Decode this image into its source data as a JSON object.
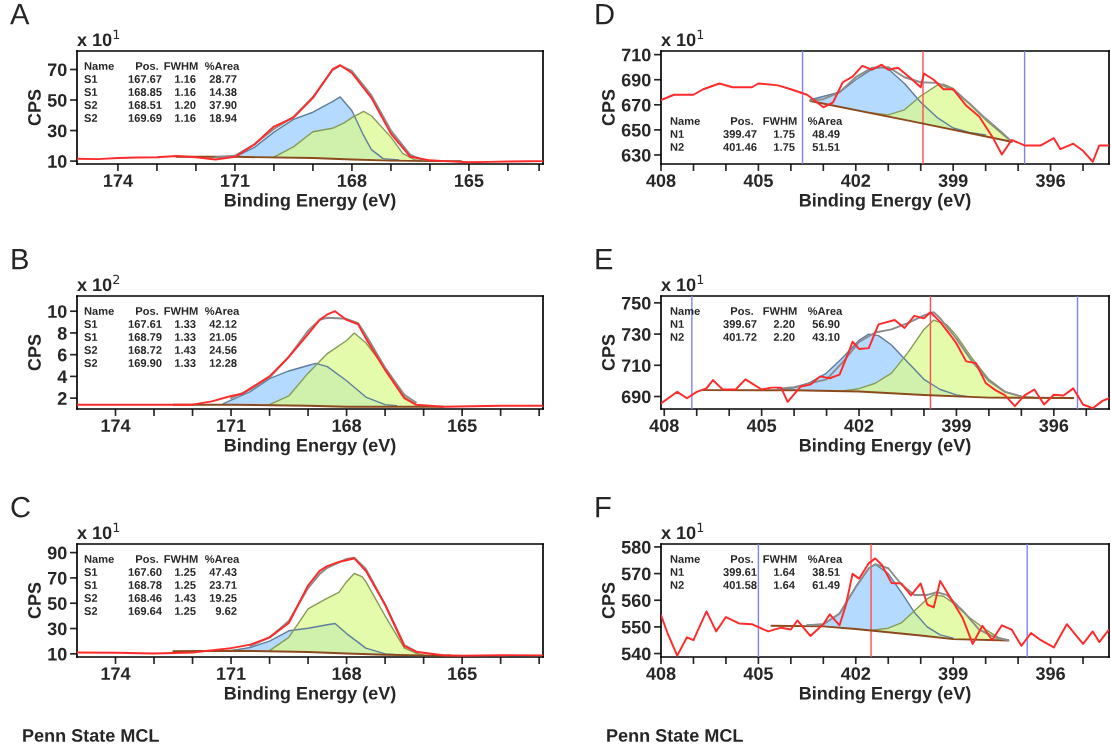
{
  "chart_data": [
    {
      "type": "line",
      "title": "A",
      "xlabel": "Binding Energy (eV)",
      "ylabel": "CPS",
      "xlim": [
        175.05,
        163.1
      ],
      "ylim": [
        8.1,
        82.1
      ],
      "xticks": [
        174,
        {
          "value": 173,
          "label": null
        },
        {
          "value": 172,
          "label": null
        },
        171,
        {
          "value": 170,
          "label": null
        },
        {
          "value": 169,
          "label": null
        },
        168,
        {
          "value": 167,
          "label": null
        },
        {
          "value": 166,
          "label": null
        },
        165,
        {
          "value": 164,
          "label": null
        },
        {
          "value": 163.2,
          "label": null
        }
      ],
      "yticks": [
        10,
        30,
        50,
        70
      ],
      "annotations": [
        "x 10$^{1}$",
        "Name",
        "Pos.",
        "FWHM",
        "%Area",
        "S1",
        "167.67",
        "1.16",
        "28.77",
        "S1",
        "168.85",
        "1.16",
        "14.38",
        "S2",
        "168.51",
        "1.20",
        "37.90",
        "S2",
        "169.69",
        "1.16",
        "18.94"
      ],
      "series": [
        {
          "type": "area",
          "color": "#99ccff",
          "x": [
            171,
            170.5,
            170,
            169.5,
            169,
            168.5,
            168.3,
            168,
            167.7,
            167.5,
            167.2,
            166.8
          ],
          "values": [
            12.8,
            19,
            29,
            37.3,
            42,
            49,
            52,
            43,
            26.8,
            17.5,
            11.6,
            10.8
          ]
        },
        {
          "type": "area",
          "color": "#d9fa8c",
          "x": [
            170,
            169.5,
            169,
            168.5,
            168.2,
            168,
            167.7,
            167.5,
            167,
            166.7,
            166.4,
            166.2
          ],
          "values": [
            12.6,
            19.3,
            29.2,
            31.5,
            35,
            38.5,
            42.5,
            39.7,
            25.7,
            15,
            11,
            10.2
          ]
        },
        {
          "type": "line",
          "color": "#8b4a1c",
          "x": [
            172.5,
            171,
            169,
            168,
            167,
            166,
            165.2
          ],
          "values": [
            12.8,
            12.8,
            12,
            11,
            10.3,
            10,
            10
          ]
        },
        {
          "type": "line",
          "color": "#8c8c8c",
          "x": [
            171.5,
            171,
            170.5,
            170,
            169.5,
            169,
            168.5,
            168.3,
            168,
            167.5,
            167,
            166.5,
            166.2
          ],
          "values": [
            12.5,
            13.5,
            21,
            31,
            39,
            52,
            69.5,
            72.5,
            69,
            53,
            30,
            14,
            11
          ]
        },
        {
          "type": "line",
          "color": "#ff2a2a",
          "x": [
            175.05,
            174.5,
            174,
            173.5,
            173,
            172.5,
            172,
            171.5,
            171,
            170.5,
            170,
            169.5,
            169,
            168.5,
            168.3,
            168,
            167.5,
            167,
            166.5,
            166,
            165.5,
            165,
            164.5,
            164,
            163.5,
            163.1
          ],
          "values": [
            11.5,
            11.3,
            12,
            12.3,
            12.5,
            13.3,
            12.5,
            11,
            12.8,
            20.9,
            32.6,
            38.5,
            51.4,
            70,
            72.8,
            67.7,
            51.4,
            28,
            12.8,
            10.5,
            9.8,
            9.3,
            9.5,
            9.8,
            9.9,
            10
          ]
        }
      ]
    },
    {
      "type": "line",
      "title": "D",
      "xlabel": "Binding Energy (eV)",
      "ylabel": "CPS",
      "xlim": [
        408,
        394.2
      ],
      "ylim": [
        622.8,
        712.9
      ],
      "xticks": [
        408,
        {
          "value": 407,
          "label": null
        },
        {
          "value": 406,
          "label": null
        },
        405,
        {
          "value": 404,
          "label": null
        },
        {
          "value": 403,
          "label": null
        },
        402,
        {
          "value": 401,
          "label": null
        },
        {
          "value": 400,
          "label": null
        },
        399,
        {
          "value": 398,
          "label": null
        },
        {
          "value": 397,
          "label": null
        },
        396,
        {
          "value": 395,
          "label": null
        }
      ],
      "yticks": [
        630,
        650,
        670,
        690,
        710
      ],
      "ref_lines": [
        {
          "axis": "x",
          "value": 403.64,
          "color": "#8080ff"
        },
        {
          "axis": "x",
          "value": 399.93,
          "color": "#ff4d4d"
        },
        {
          "axis": "x",
          "value": 396.8,
          "color": "#8080ff"
        }
      ],
      "annotations": [
        "x 10$^{1}$",
        "Name",
        "Pos.",
        "FWHM",
        "%Area",
        "N1",
        "399.47",
        "1.75",
        "48.49",
        "N2",
        "401.46",
        "1.75",
        "51.51"
      ],
      "series": [
        {
          "type": "area",
          "color": "#99ccff",
          "x": [
            403.4,
            402.5,
            402,
            401.5,
            401.2,
            401,
            400.5,
            400,
            399.5,
            399,
            398.5,
            398
          ],
          "values": [
            674,
            680,
            690,
            698.5,
            700,
            698.5,
            687,
            672,
            660,
            651.5,
            648,
            646
          ]
        },
        {
          "type": "area",
          "color": "#d9fa8c",
          "x": [
            401.5,
            401,
            400.5,
            400,
            399.5,
            399.3,
            399,
            398.5,
            398,
            397.5,
            397.2
          ],
          "values": [
            663.5,
            662,
            666,
            677,
            685.5,
            686.5,
            683,
            671,
            658,
            647,
            640.5
          ]
        },
        {
          "type": "line",
          "color": "#8b4a1c",
          "x": [
            403.4,
            400.3,
            397.2
          ],
          "values": [
            673,
            657,
            640.5
          ]
        },
        {
          "type": "line",
          "color": "#8c8c8c",
          "x": [
            403.4,
            403,
            402.5,
            402,
            401.5,
            401,
            400.5,
            400,
            399.5,
            399,
            398.5,
            398,
            397.5,
            397.2
          ],
          "values": [
            673.5,
            674.5,
            680,
            692,
            699.5,
            700,
            692,
            688,
            687.5,
            682,
            671,
            659,
            648,
            640.5
          ]
        },
        {
          "type": "line",
          "color": "#ff2a2a",
          "x": [
            408,
            407.6,
            407,
            406.7,
            406.2,
            405.8,
            405.2,
            405,
            404.4,
            404,
            403.5,
            403,
            402.7,
            402.4,
            402.1,
            401.8,
            401.5,
            401.2,
            401,
            400.7,
            400.3,
            400,
            399.9,
            399.6,
            399.3,
            399,
            398.6,
            398.2,
            397.8,
            397.5,
            397.2,
            396.8,
            396.3,
            395.9,
            395.7,
            395.3,
            395,
            394.7,
            394.5,
            394.2
          ],
          "values": [
            673.7,
            678,
            678,
            682.4,
            687,
            684,
            684,
            687,
            685.5,
            682.4,
            678,
            668,
            672,
            688,
            692.5,
            701,
            698,
            702,
            698,
            699.5,
            691,
            684,
            695,
            690,
            682.4,
            682.4,
            669.4,
            660.7,
            644.8,
            630.4,
            642,
            637.6,
            637.6,
            643.4,
            634.7,
            639,
            633.3,
            624.6,
            637.6,
            637.6
          ]
        }
      ]
    },
    {
      "type": "line",
      "title": "B",
      "xlabel": "Binding Energy (eV)",
      "ylabel": "CPS",
      "xlim": [
        175.0,
        162.9
      ],
      "ylim": [
        1.0,
        11.4
      ],
      "xticks": [
        174,
        {
          "value": 173,
          "label": null
        },
        {
          "value": 172,
          "label": null
        },
        171,
        {
          "value": 170,
          "label": null
        },
        {
          "value": 169,
          "label": null
        },
        168,
        {
          "value": 167,
          "label": null
        },
        {
          "value": 166,
          "label": null
        },
        165,
        {
          "value": 164,
          "label": null
        },
        {
          "value": 163,
          "label": null
        }
      ],
      "yticks": [
        2,
        4,
        6,
        8,
        10
      ],
      "annotations": [
        "x 10$^{2}$",
        "Name",
        "Pos.",
        "FWHM",
        "%Area",
        "S1",
        "167.61",
        "1.33",
        "42.12",
        "S1",
        "168.79",
        "1.33",
        "21.05",
        "S2",
        "168.72",
        "1.43",
        "24.56",
        "S2",
        "169.90",
        "1.33",
        "12.28"
      ],
      "series": [
        {
          "type": "area",
          "color": "#99ccff",
          "x": [
            171.2,
            170.5,
            170,
            169.5,
            169,
            168.8,
            168.5,
            168,
            167.5,
            167,
            166.7
          ],
          "values": [
            1.5,
            2.6,
            3.8,
            4.5,
            5.0,
            5.2,
            4.9,
            3.6,
            2.1,
            1.4,
            1.3
          ]
        },
        {
          "type": "area",
          "color": "#d9fa8c",
          "x": [
            170,
            169.5,
            169,
            168.5,
            168,
            167.8,
            167.5,
            167,
            166.5,
            166.2,
            166
          ],
          "values": [
            1.4,
            2.2,
            4.3,
            6.1,
            7.3,
            8.0,
            7.1,
            4.8,
            2.1,
            1.4,
            1.2
          ]
        },
        {
          "type": "line",
          "color": "#8b4a1c",
          "x": [
            172.5,
            171,
            169,
            168,
            167,
            165.5
          ],
          "values": [
            1.4,
            1.4,
            1.3,
            1.2,
            1.2,
            1.2
          ]
        },
        {
          "type": "line",
          "color": "#8c8c8c",
          "x": [
            171,
            170.5,
            170,
            169.5,
            169,
            168.7,
            168.5,
            168,
            167.7,
            167.5,
            167,
            166.5,
            166.2
          ],
          "values": [
            2.0,
            2.8,
            3.9,
            5.8,
            8.2,
            9.2,
            9.4,
            9.3,
            8.9,
            7.8,
            4.8,
            2.3,
            1.6
          ]
        },
        {
          "type": "line",
          "color": "#ff2a2a",
          "x": [
            175.0,
            174,
            173,
            172,
            171.5,
            171,
            170.7,
            170.5,
            170,
            169.5,
            169,
            168.7,
            168.5,
            168.3,
            168,
            167.7,
            167.5,
            167,
            166.5,
            166.2,
            165.5,
            164,
            162.9
          ],
          "values": [
            1.4,
            1.4,
            1.4,
            1.4,
            1.7,
            2.2,
            2.4,
            2.9,
            4.0,
            5.8,
            7.9,
            9.2,
            9.7,
            10.0,
            9.2,
            8.8,
            7.5,
            4.6,
            2.0,
            1.4,
            1.2,
            1.3,
            1.3
          ]
        }
      ]
    },
    {
      "type": "line",
      "title": "E",
      "xlabel": "Binding Energy (eV)",
      "ylabel": "CPS",
      "xlim": [
        408.1,
        394.3
      ],
      "ylim": [
        682.0,
        754.4
      ],
      "xticks": [
        408,
        {
          "value": 407,
          "label": null
        },
        {
          "value": 406,
          "label": null
        },
        405,
        {
          "value": 404,
          "label": null
        },
        {
          "value": 403,
          "label": null
        },
        402,
        {
          "value": 401,
          "label": null
        },
        {
          "value": 400,
          "label": null
        },
        399,
        {
          "value": 398,
          "label": null
        },
        {
          "value": 397,
          "label": null
        },
        396,
        {
          "value": 395,
          "label": null
        }
      ],
      "yticks": [
        690,
        710,
        730,
        750
      ],
      "ref_lines": [
        {
          "axis": "x",
          "value": 407.15,
          "color": "#8080ff"
        },
        {
          "axis": "x",
          "value": 399.8,
          "color": "#ff4d4d"
        },
        {
          "axis": "x",
          "value": 395.27,
          "color": "#8080ff"
        }
      ],
      "annotations": [
        "x 10$^{1}$",
        "Name",
        "Pos.",
        "FWHM",
        "%Area",
        "N1",
        "399.67",
        "2.20",
        "56.90",
        "N2",
        "401.72",
        "2.20",
        "43.10"
      ],
      "series": [
        {
          "type": "area",
          "color": "#99ccff",
          "x": [
            404.5,
            404,
            403.5,
            403,
            402.5,
            402,
            401.7,
            401.4,
            401,
            400.5,
            400,
            399.5,
            399,
            398.7
          ],
          "values": [
            694.5,
            695.5,
            699,
            705,
            715,
            726,
            730,
            729,
            723,
            712,
            701,
            694.5,
            691,
            690
          ]
        },
        {
          "type": "area",
          "color": "#d9fa8c",
          "x": [
            402.5,
            402,
            401.5,
            401,
            400.5,
            400,
            399.7,
            399.3,
            399,
            398.5,
            398,
            397.5,
            397,
            396.5
          ],
          "values": [
            693.6,
            695,
            698.5,
            705,
            718,
            733,
            739,
            736,
            729,
            714,
            701,
            693,
            690,
            689.2
          ]
        },
        {
          "type": "line",
          "color": "#8b4a1c",
          "x": [
            406.8,
            404,
            402,
            400,
            398,
            395.4
          ],
          "values": [
            694.1,
            694,
            693.2,
            691,
            689.3,
            689
          ]
        },
        {
          "type": "line",
          "color": "#8c8c8c",
          "x": [
            404.5,
            404,
            403,
            402.5,
            402,
            401.5,
            401,
            400.5,
            400,
            399.7,
            399.5,
            399,
            398.5,
            398,
            397.5,
            397
          ],
          "values": [
            695,
            696,
            701,
            712,
            725,
            731,
            733,
            737,
            742,
            744,
            740,
            727,
            712,
            700,
            693,
            690
          ]
        },
        {
          "type": "line",
          "color": "#ff2a2a",
          "x": [
            408.1,
            407.6,
            407.3,
            407,
            406.7,
            406.5,
            406.2,
            405.8,
            405.5,
            405,
            404.7,
            404.4,
            404.2,
            403.8,
            403.5,
            403.2,
            402.9,
            402.6,
            402.3,
            402.2,
            402,
            401.7,
            401.4,
            400.9,
            400.6,
            400.3,
            400,
            399.8,
            399.5,
            399.2,
            399,
            398.7,
            398.4,
            398.1,
            397.8,
            397.5,
            397.2,
            396.9,
            396.6,
            396.3,
            396,
            395.7,
            395.4,
            395.1,
            394.8,
            394.5,
            394.3
          ],
          "values": [
            685.6,
            693,
            688.9,
            693,
            695.2,
            700.5,
            694.5,
            694.5,
            701,
            694.5,
            695.7,
            695.7,
            686.6,
            696.4,
            697.6,
            702.9,
            701.7,
            704,
            719.4,
            725.1,
            720.5,
            721,
            736.2,
            739,
            733.9,
            741.7,
            740.1,
            744,
            737.8,
            729.7,
            724,
            712.5,
            711.4,
            698.7,
            694.1,
            690.7,
            683.8,
            690.7,
            694.5,
            684.9,
            691.1,
            690.7,
            695.2,
            684.9,
            682.5,
            687.2,
            688.9
          ]
        }
      ]
    },
    {
      "type": "line",
      "title": "C",
      "xlabel": "Binding Energy (eV)",
      "ylabel": "CPS",
      "xlim": [
        175.0,
        162.9
      ],
      "ylim": [
        7.5,
        96.8
      ],
      "xticks": [
        174,
        {
          "value": 173,
          "label": null
        },
        {
          "value": 172,
          "label": null
        },
        171,
        {
          "value": 170,
          "label": null
        },
        {
          "value": 169,
          "label": null
        },
        168,
        {
          "value": 167,
          "label": null
        },
        {
          "value": 166,
          "label": null
        },
        165,
        {
          "value": 164,
          "label": null
        },
        {
          "value": 163,
          "label": null
        }
      ],
      "yticks": [
        10,
        30,
        50,
        70,
        90
      ],
      "annotations": [
        "x 10$^{1}$",
        "Name",
        "Pos.",
        "FWHM",
        "%Area",
        "S1",
        "167.60",
        "1.25",
        "47.43",
        "S1",
        "168.78",
        "1.25",
        "23.71",
        "S2",
        "168.46",
        "1.43",
        "19.25",
        "S2",
        "169.64",
        "1.25",
        "9.62",
        "Penn State MCL"
      ],
      "series": [
        {
          "type": "area",
          "color": "#99ccff",
          "x": [
            171,
            170.5,
            170,
            169.5,
            169,
            168.5,
            168.3,
            168,
            167.5,
            167,
            166.7
          ],
          "values": [
            12.5,
            15,
            20,
            28.2,
            30.2,
            33,
            34,
            26,
            14.5,
            10,
            9.3
          ]
        },
        {
          "type": "area",
          "color": "#d9fa8c",
          "x": [
            170,
            169.5,
            169,
            168.5,
            168.2,
            168,
            167.8,
            167.6,
            167.5,
            167,
            166.5,
            166.2,
            166
          ],
          "values": [
            12.5,
            23,
            45.6,
            54,
            58.5,
            67,
            73.5,
            71,
            67,
            40,
            14.5,
            10.5,
            9.0
          ]
        },
        {
          "type": "line",
          "color": "#8b4a1c",
          "x": [
            172.5,
            171,
            169,
            168,
            167,
            166,
            165.3
          ],
          "values": [
            12,
            12.5,
            11.5,
            10.3,
            9.3,
            8.8,
            8.7
          ]
        },
        {
          "type": "line",
          "color": "#8c8c8c",
          "x": [
            170.5,
            170,
            169.5,
            169,
            168.7,
            168.5,
            168,
            167.8,
            167.5,
            167,
            166.5,
            166.2
          ],
          "values": [
            16,
            23,
            36,
            62,
            73,
            78,
            85,
            86,
            77,
            49,
            17,
            12
          ]
        },
        {
          "type": "line",
          "color": "#ff2a2a",
          "x": [
            175.0,
            174,
            173,
            172,
            171,
            170.5,
            170,
            169.5,
            169,
            168.7,
            168.5,
            168.2,
            168,
            167.8,
            167.5,
            167,
            166.5,
            166.2,
            165.5,
            165,
            164,
            162.9
          ],
          "values": [
            11.1,
            10.8,
            10.3,
            11,
            14.5,
            17.3,
            23,
            34.4,
            64,
            75.6,
            79.3,
            82.7,
            84,
            85.5,
            75.6,
            48.8,
            16,
            11.7,
            8.9,
            8.5,
            9.0,
            8.8
          ]
        }
      ]
    },
    {
      "type": "line",
      "title": "F",
      "xlabel": "Binding Energy (eV)",
      "ylabel": "CPS",
      "xlim": [
        408,
        394.2
      ],
      "ylim": [
        538.7,
        581.1
      ],
      "xticks": [
        408,
        {
          "value": 407,
          "label": null
        },
        {
          "value": 406,
          "label": null
        },
        405,
        {
          "value": 404,
          "label": null
        },
        {
          "value": 403,
          "label": null
        },
        402,
        {
          "value": 401,
          "label": null
        },
        {
          "value": 400,
          "label": null
        },
        399,
        {
          "value": 398,
          "label": null
        },
        {
          "value": 397,
          "label": null
        },
        396,
        {
          "value": 395,
          "label": null
        }
      ],
      "yticks": [
        540,
        550,
        560,
        570,
        580
      ],
      "ref_lines": [
        {
          "axis": "x",
          "value": 405.0,
          "color": "#8080ff"
        },
        {
          "axis": "x",
          "value": 401.53,
          "color": "#ff4d4d"
        },
        {
          "axis": "x",
          "value": 396.72,
          "color": "#8080ff"
        }
      ],
      "annotations": [
        "x 10$^{1}$",
        "Name",
        "Pos.",
        "FWHM",
        "%Area",
        "N1",
        "399.61",
        "1.64",
        "38.51",
        "N2",
        "401.58",
        "1.64",
        "61.49",
        "Penn State MCL"
      ],
      "series": [
        {
          "type": "area",
          "color": "#99ccff",
          "x": [
            403.5,
            403,
            402.5,
            402,
            401.6,
            401.4,
            401,
            400.6,
            400.2,
            399.8,
            399.4,
            399
          ],
          "values": [
            550.6,
            551,
            555,
            565,
            572,
            573.5,
            570,
            563,
            555.5,
            550,
            547,
            545.8
          ]
        },
        {
          "type": "area",
          "color": "#d9fa8c",
          "x": [
            401.5,
            401,
            400.6,
            400.2,
            399.8,
            399.6,
            399.3,
            399,
            398.5,
            398,
            397.6,
            397.3
          ],
          "values": [
            548.8,
            549.5,
            551.5,
            556,
            560.5,
            562,
            561.5,
            559,
            553.5,
            549,
            546,
            545
          ]
        },
        {
          "type": "line",
          "color": "#8b4a1c",
          "x": [
            404.6,
            403,
            402,
            401,
            400,
            399,
            397.3
          ],
          "values": [
            550.4,
            550.2,
            549.2,
            548,
            546.8,
            545.4,
            544.9
          ]
        },
        {
          "type": "line",
          "color": "#8c8c8c",
          "x": [
            403.5,
            403,
            402.5,
            402,
            401.6,
            401.4,
            401,
            400.6,
            400.2,
            399.8,
            399.5,
            399.2,
            398.7,
            398.2,
            397.7,
            397.3
          ],
          "values": [
            550.6,
            551,
            555,
            565,
            572,
            573.5,
            572,
            566,
            562,
            562,
            563,
            562,
            556,
            549,
            546,
            545
          ]
        },
        {
          "type": "line",
          "color": "#ff2a2a",
          "x": [
            408,
            407.8,
            407.5,
            407.2,
            407,
            406.6,
            406.3,
            406,
            405.6,
            405.2,
            404.7,
            404.3,
            404,
            403.8,
            403.4,
            403,
            402.8,
            402.5,
            402.3,
            402.1,
            401.9,
            401.6,
            401.4,
            401.2,
            400.9,
            400.6,
            400.3,
            400,
            399.8,
            399.6,
            399.4,
            399.1,
            398.7,
            398.4,
            398.1,
            397.8,
            397.5,
            397.2,
            396.9,
            396.6,
            396.3,
            395.9,
            395.5,
            395,
            394.7,
            394.5,
            394.2
          ],
          "values": [
            554.4,
            547.7,
            539.2,
            546.1,
            545,
            555.8,
            548.3,
            553.7,
            551.3,
            551,
            548.3,
            549.7,
            549,
            552.4,
            546.6,
            551,
            554.7,
            550.6,
            558.4,
            569.9,
            568.1,
            573.9,
            575.7,
            573.3,
            566.5,
            566.3,
            561.8,
            566.3,
            558.4,
            557.3,
            567.2,
            561.2,
            553.1,
            543.6,
            550.4,
            545,
            550.6,
            549,
            542.9,
            547.7,
            545,
            542.3,
            551,
            543.6,
            548.3,
            544.3,
            549
          ]
        }
      ]
    }
  ]
}
